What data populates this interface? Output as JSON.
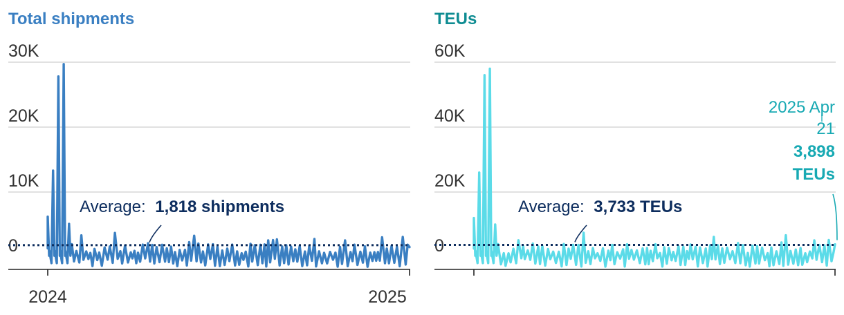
{
  "chart_data": [
    {
      "type": "line",
      "title": "Total shipments",
      "color": "#3a7fc2",
      "ylim": [
        0,
        30000
      ],
      "yticks": [
        "0",
        "10K",
        "20K",
        "30K"
      ],
      "ytick_values": [
        0,
        10000,
        20000,
        30000
      ],
      "xticks": [
        "2024",
        "2025"
      ],
      "x_range": [
        "2024-01-01",
        "2025-04-21"
      ],
      "average_label": "Average:",
      "average_value_label": "1,818 shipments",
      "average": 1818,
      "peaks": [
        {
          "date": "2024-01-01",
          "value": 6200
        },
        {
          "date": "2024-01-08",
          "value": 13300
        },
        {
          "date": "2024-01-15",
          "value": 27800
        },
        {
          "date": "2024-01-22",
          "value": 29700
        },
        {
          "date": "2024-01-29",
          "value": 5100
        }
      ],
      "baseline_range": [
        0,
        3800
      ]
    },
    {
      "type": "line",
      "title": "TEUs",
      "color": "#5bdbe8",
      "title_color": "#0e8c92",
      "ylim": [
        0,
        60000
      ],
      "yticks": [
        "0",
        "20K",
        "40K",
        "60K"
      ],
      "ytick_values": [
        0,
        20000,
        40000,
        60000
      ],
      "x_range": [
        "2024-01-01",
        "2025-04-21"
      ],
      "average_label": "Average:",
      "average_value_label": "3,733 TEUs",
      "average": 3733,
      "peaks": [
        {
          "date": "2024-01-01",
          "value": 12000
        },
        {
          "date": "2024-01-08",
          "value": 26000
        },
        {
          "date": "2024-01-15",
          "value": 56000
        },
        {
          "date": "2024-01-22",
          "value": 58000
        },
        {
          "date": "2024-01-29",
          "value": 10000
        }
      ],
      "baseline_range": [
        0,
        7500
      ],
      "annotation": {
        "date_line1": "2025 Apr",
        "date_line2": "21",
        "value_label": "3,898",
        "unit_label": "TEUs",
        "value": 3898,
        "color": "#17a9b3"
      }
    }
  ]
}
